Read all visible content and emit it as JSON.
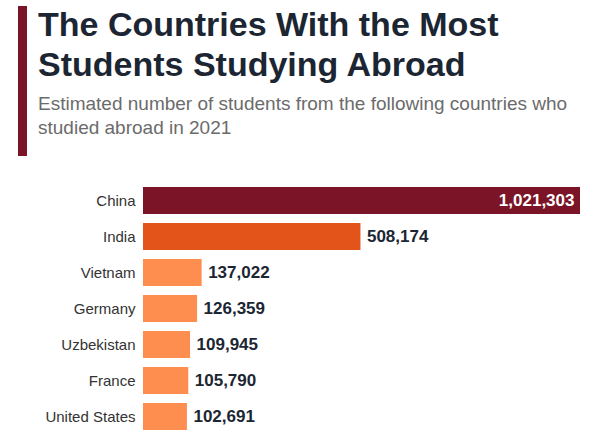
{
  "chart_data": {
    "type": "bar",
    "orientation": "horizontal",
    "title": "The Countries With the Most Students Studying Abroad",
    "subtitle": "Estimated number of students from the following countries who studied abroad in 2021",
    "categories": [
      "China",
      "India",
      "Vietnam",
      "Germany",
      "Uzbekistan",
      "France",
      "United States"
    ],
    "values": [
      1021303,
      508174,
      137022,
      126359,
      109945,
      105790,
      102691
    ],
    "value_labels": [
      "1,021,303",
      "508,174",
      "137,022",
      "126,359",
      "109,945",
      "105,790",
      "102,691"
    ],
    "colors": [
      "#7a1426",
      "#e2541a",
      "#fd8e50",
      "#fd8e50",
      "#fd8e50",
      "#fd8e50",
      "#fd8e50"
    ],
    "xlim": [
      0,
      1021303
    ],
    "data_labels": true,
    "tick_labels": "y",
    "grid": false
  }
}
